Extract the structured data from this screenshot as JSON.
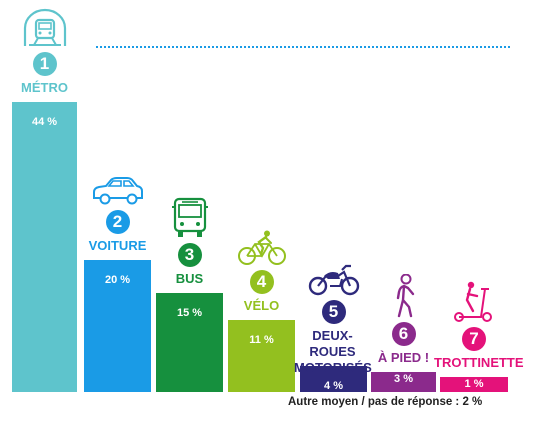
{
  "chart_data": {
    "type": "bar",
    "title": "",
    "xlabel": "",
    "ylabel": "",
    "ylim": [
      0,
      44
    ],
    "categories": [
      "MÉTRO",
      "VOITURE",
      "BUS",
      "VÉLO",
      "DEUX-ROUES MOTORISÉS",
      "À PIED !",
      "TROTTINETTE"
    ],
    "ranks": [
      "1",
      "2",
      "3",
      "4",
      "5",
      "6",
      "7"
    ],
    "values": [
      44,
      20,
      15,
      11,
      4,
      3,
      1
    ],
    "value_labels": [
      "44 %",
      "20 %",
      "15 %",
      "11 %",
      "4 %",
      "3 %",
      "1 %"
    ],
    "colors": [
      "#5ec4cc",
      "#1a9be6",
      "#16903e",
      "#93c01f",
      "#2e2a7c",
      "#8b2a8c",
      "#e4127a"
    ],
    "icons": [
      "metro-icon",
      "car-icon",
      "bus-icon",
      "bicycle-icon",
      "motorcycle-icon",
      "pedestrian-icon",
      "scooter-icon"
    ],
    "footnote": "Autre moyen / pas de réponse : 2 %"
  }
}
